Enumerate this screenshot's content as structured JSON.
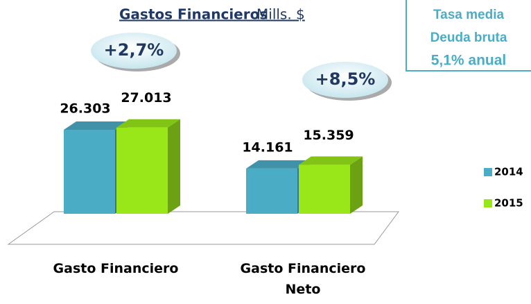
{
  "chart_data": {
    "type": "bar3d",
    "title": "Gastos Financieros",
    "subtitle": "Mills. $",
    "categories": [
      "Gasto Financiero",
      "Gasto Financiero Neto"
    ],
    "series": [
      {
        "name": "2014",
        "color": "#4bacc6",
        "values": [
          26303,
          14161
        ],
        "value_labels": [
          "26.303",
          "14.161"
        ]
      },
      {
        "name": "2015",
        "color": "#99e619",
        "values": [
          27013,
          15359
        ],
        "value_labels": [
          "27.013",
          "15.359"
        ]
      }
    ],
    "annotations": [
      "+2,7%",
      "+8,5%"
    ],
    "info_box": [
      "Tasa media",
      "Deuda bruta",
      "5,1% anual"
    ]
  }
}
